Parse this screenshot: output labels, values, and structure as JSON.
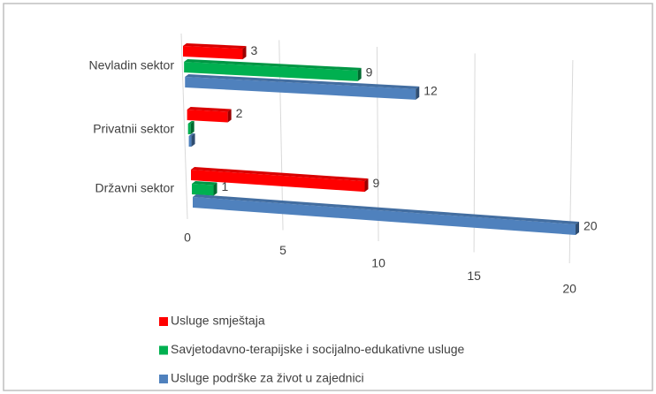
{
  "chart_data": {
    "type": "bar3d",
    "categories": [
      "Nevladin sektor",
      "Privatnii sektor",
      "Državni sektor"
    ],
    "series": [
      {
        "name": "Usluge smještaja",
        "color": "#ff0000",
        "values": [
          3,
          2,
          9
        ]
      },
      {
        "name": "Savjetodavno-terapijske i socijalno-edukativne usluge",
        "color": "#00b050",
        "values": [
          9,
          0,
          1
        ]
      },
      {
        "name": "Usluge podrške za život u zajednici",
        "color": "#4f81bd",
        "values": [
          12,
          0,
          20
        ]
      }
    ],
    "xlim": [
      0,
      20
    ],
    "xticks": [
      0,
      5,
      10,
      15,
      20
    ],
    "grid": true
  }
}
